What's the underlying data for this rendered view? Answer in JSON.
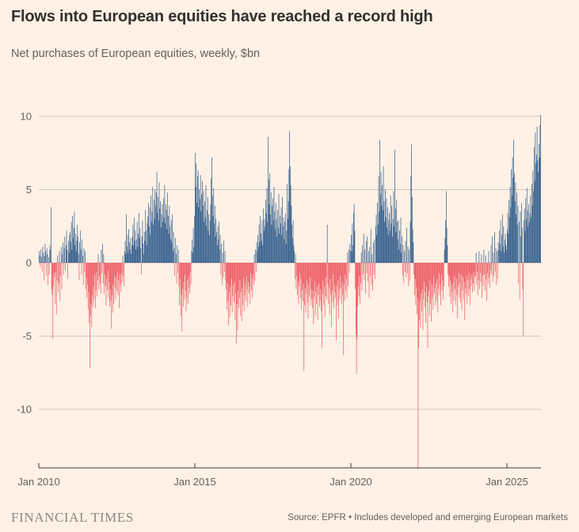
{
  "header": {
    "title": "Flows into European equities have reached a record high",
    "subtitle": "Net purchases of European equities, weekly, $bn"
  },
  "footer": {
    "brand": "FINANCIAL TIMES",
    "source": "Source: EPFR • Includes developed and emerging European markets"
  },
  "chart_data": {
    "type": "bar",
    "title": "Flows into European equities have reached a record high",
    "subtitle": "Net purchases of European equities, weekly, $bn",
    "unit": "$bn",
    "frequency": "weekly",
    "grid": true,
    "legend": "none",
    "colors": {
      "positive_bar": "#335f8d",
      "negative_bar": "#ed5b64",
      "background": "#fff1e5",
      "gridline": "#d2c5ba",
      "axis_line": "#66605c",
      "tick_text": "#66605c"
    },
    "y_axis": {
      "ticks": [
        10,
        5,
        0,
        -5,
        -10
      ],
      "min_shown": -14.1,
      "max_shown": 10.1
    },
    "x_axis": {
      "tick_labels": [
        "Jan 2010",
        "Jan 2015",
        "Jan 2020",
        "Jan 2025"
      ],
      "tick_weeks": [
        0,
        261,
        522,
        783
      ],
      "start": "Jan 2010"
    },
    "weekly_values": [
      0.8,
      0.5,
      -0.3,
      0.9,
      0.4,
      -0.6,
      1.1,
      0.7,
      -1.2,
      0.5,
      1.3,
      0.8,
      -0.9,
      1.0,
      0.6,
      -1.5,
      0.4,
      -0.8,
      1.2,
      0.9,
      3.8,
      -1.8,
      -2.2,
      -5.2,
      -1.6,
      -0.7,
      -1.0,
      -2.8,
      -0.6,
      -3.5,
      -1.2,
      0.5,
      -2.0,
      -1.4,
      0.8,
      -2.6,
      -0.9,
      1.1,
      -1.8,
      0.6,
      1.4,
      -0.8,
      1.0,
      1.8,
      -0.5,
      1.2,
      2.2,
      0.9,
      -1.1,
      1.5,
      0.7,
      1.9,
      2.1,
      1.4,
      2.8,
      0.9,
      3.2,
      1.7,
      2.4,
      3.5,
      1.2,
      2.0,
      0.8,
      1.5,
      2.6,
      1.8,
      0.6,
      -1.2,
      1.4,
      2.2,
      0.9,
      -0.8,
      1.6,
      0.5,
      -1.5,
      1.0,
      -0.6,
      0.8,
      -1.8,
      -1.0,
      -2.4,
      -1.5,
      -3.2,
      -2.0,
      -4.1,
      -7.2,
      -3.6,
      -2.8,
      -4.4,
      -2.2,
      -3.0,
      -1.6,
      -2.5,
      -0.8,
      -3.1,
      -1.9,
      -0.6,
      -2.3,
      -1.2,
      0.6,
      -1.8,
      -0.9,
      -1.4,
      -2.1,
      0.9,
      -0.7,
      1.3,
      -1.4,
      0.6,
      -2.1,
      -0.8,
      -1.6,
      -2.9,
      -1.1,
      -1.9,
      -0.5,
      -2.4,
      -1.3,
      -3.0,
      -1.8,
      -2.6,
      -4.5,
      -2.2,
      -3.4,
      -1.5,
      -2.8,
      -0.9,
      -1.7,
      -2.5,
      -1.0,
      -1.9,
      -0.6,
      -2.2,
      -1.2,
      -3.1,
      -0.8,
      -1.5,
      -2.0,
      -0.7,
      -1.3,
      0.5,
      -0.9,
      -1.6,
      0.8,
      1.5,
      0.6,
      3.3,
      1.1,
      1.9,
      0.7,
      2.3,
      1.4,
      0.9,
      1.7,
      0.6,
      1.2,
      1.8,
      2.6,
      1.2,
      3.1,
      1.5,
      2.2,
      0.9,
      1.6,
      2.8,
      1.1,
      2.0,
      3.4,
      1.7,
      2.4,
      1.0,
      -0.8,
      1.8,
      2.9,
      1.3,
      0.6,
      2.1,
      1.5,
      3.6,
      2.2,
      1.2,
      2.7,
      3.2,
      4.1,
      2.5,
      3.8,
      1.9,
      4.6,
      2.8,
      3.5,
      5.2,
      2.6,
      4.3,
      3.0,
      5.0,
      3.9,
      4.8,
      6.2,
      3.4,
      4.5,
      2.9,
      5.5,
      3.7,
      4.2,
      2.4,
      3.3,
      4.0,
      2.8,
      4.4,
      3.1,
      5.3,
      2.7,
      4.0,
      3.6,
      2.3,
      4.8,
      3.2,
      2.0,
      3.9,
      2.5,
      1.6,
      2.9,
      1.4,
      3.3,
      0.8,
      2.1,
      1.0,
      -0.9,
      1.7,
      0.6,
      -1.4,
      1.2,
      -0.7,
      0.9,
      -1.6,
      -2.9,
      -1.1,
      -3.6,
      -2.2,
      -4.7,
      -1.8,
      -3.0,
      -1.3,
      -2.5,
      -0.8,
      -1.9,
      -3.3,
      -2.4,
      -1.2,
      -2.8,
      -0.9,
      -1.7,
      -2.1,
      -0.6,
      -1.5,
      0.8,
      1.6,
      0.7,
      2.4,
      1.1,
      3.2,
      7.5,
      5.2,
      6.8,
      4.1,
      5.9,
      6.3,
      3.8,
      5.0,
      4.4,
      6.0,
      3.5,
      4.7,
      5.6,
      3.9,
      4.9,
      2.8,
      4.2,
      3.1,
      5.3,
      2.5,
      3.6,
      4.5,
      2.2,
      3.3,
      1.9,
      2.9,
      4.0,
      5.8,
      7.2,
      4.6,
      3.2,
      5.1,
      2.7,
      3.9,
      1.8,
      3.0,
      2.1,
      1.2,
      2.5,
      1.6,
      2.8,
      0.9,
      1.9,
      -0.8,
      1.3,
      -1.5,
      0.7,
      -1.0,
      1.5,
      -0.6,
      0.8,
      -1.2,
      -1.8,
      -3.2,
      -1.4,
      -2.6,
      -4.3,
      -2.0,
      -3.7,
      -1.6,
      -2.9,
      -1.1,
      -3.4,
      -2.3,
      -1.5,
      -2.7,
      -1.3,
      -3.9,
      -2.1,
      -5.5,
      -2.8,
      -4.6,
      -1.9,
      -3.1,
      -2.4,
      -1.2,
      -3.6,
      -2.0,
      -4.0,
      -1.7,
      -2.9,
      -1.0,
      -3.3,
      -2.2,
      -1.4,
      -2.6,
      -0.9,
      -1.8,
      -3.0,
      -1.3,
      -2.1,
      -1.6,
      -2.8,
      -0.7,
      -1.9,
      -1.1,
      -2.4,
      -0.8,
      -1.5,
      0.6,
      -1.2,
      0.9,
      -0.6,
      1.4,
      0.8,
      1.9,
      1.1,
      2.6,
      1.4,
      3.2,
      2.0,
      1.5,
      2.9,
      1.2,
      3.7,
      2.2,
      3.0,
      2.5,
      4.3,
      3.4,
      5.1,
      2.8,
      8.6,
      5.7,
      4.0,
      6.1,
      3.3,
      4.8,
      2.6,
      3.9,
      4.4,
      2.9,
      5.2,
      3.5,
      2.3,
      4.1,
      3.0,
      1.8,
      3.6,
      2.4,
      4.7,
      2.0,
      3.2,
      2.7,
      3.8,
      1.9,
      4.5,
      2.5,
      3.1,
      1.6,
      2.8,
      3.4,
      1.3,
      2.2,
      5.4,
      3.0,
      4.2,
      6.4,
      9.0,
      6.6,
      5.3,
      3.9,
      2.6,
      1.7,
      2.9,
      1.2,
      0.8,
      -1.1,
      0.6,
      -1.8,
      -0.9,
      -2.2,
      -1.3,
      -2.8,
      -1.6,
      -0.7,
      -2.4,
      -1.1,
      -3.2,
      -1.9,
      -2.6,
      -1.4,
      -7.4,
      -2.9,
      -1.7,
      -3.4,
      -2.1,
      -1.2,
      -2.7,
      -3.8,
      -1.5,
      -2.3,
      -1.0,
      -2.9,
      -1.8,
      -2.5,
      -3.1,
      -1.9,
      -4.2,
      -2.4,
      -1.3,
      -3.6,
      -2.0,
      -2.8,
      -1.6,
      -3.9,
      -2.2,
      -1.4,
      -3.0,
      -2.6,
      -1.8,
      -3.3,
      -5.8,
      -2.1,
      -1.2,
      -2.9,
      -1.6,
      -3.7,
      -2.3,
      -1.0,
      -2.5,
      2.6,
      -1.4,
      -2.8,
      -1.7,
      -3.5,
      -1.1,
      -2.2,
      -4.4,
      -1.9,
      -2.7,
      -0.8,
      -3.1,
      -1.5,
      -2.0,
      -2.4,
      -5.3,
      -1.6,
      -2.9,
      -1.2,
      -3.8,
      -1.8,
      -2.5,
      -0.9,
      -1.7,
      -2.8,
      -1.3,
      -2.2,
      -6.3,
      -1.5,
      -2.6,
      -0.8,
      -1.9,
      -1.1,
      -2.4,
      0.7,
      -1.6,
      0.9,
      -0.7,
      1.3,
      0.8,
      1.9,
      0.8,
      2.7,
      1.2,
      3.4,
      4.0,
      2.2,
      -1.8,
      -4.9,
      -7.6,
      -5.2,
      -3.0,
      -1.6,
      -2.3,
      -0.9,
      -2.8,
      -1.4,
      0.7,
      -1.9,
      1.2,
      -0.8,
      2.0,
      -1.2,
      0.9,
      -2.1,
      1.5,
      -0.7,
      1.8,
      -1.3,
      0.8,
      -2.4,
      1.1,
      -0.9,
      2.3,
      -1.5,
      0.6,
      -1.9,
      1.4,
      -0.8,
      1.6,
      -1.1,
      2.5,
      3.3,
      1.9,
      4.1,
      2.6,
      5.9,
      3.5,
      8.4,
      4.7,
      6.2,
      3.9,
      5.3,
      3.6,
      6.6,
      4.2,
      2.8,
      5.0,
      3.1,
      4.4,
      2.4,
      3.8,
      1.9,
      2.9,
      3.4,
      2.2,
      4.6,
      2.7,
      3.9,
      1.8,
      3.0,
      4.9,
      2.5,
      7.7,
      3.7,
      2.1,
      4.3,
      2.8,
      1.6,
      2.9,
      0.9,
      2.2,
      1.3,
      3.1,
      0.7,
      1.8,
      -0.9,
      1.2,
      -1.4,
      0.8,
      -0.6,
      1.5,
      -1.0,
      2.4,
      -0.7,
      1.1,
      -1.6,
      0.9,
      -1.2,
      2.8,
      5.9,
      8.1,
      4.5,
      2.3,
      1.4,
      -0.8,
      -2.2,
      -1.1,
      -2.9,
      -1.7,
      -3.5,
      -2.4,
      -14.1,
      -5.8,
      -3.9,
      -2.6,
      -4.4,
      -2.1,
      -3.3,
      -1.8,
      -4.6,
      -2.5,
      -1.3,
      -3.0,
      -2.0,
      -4.1,
      -1.6,
      -2.7,
      -5.8,
      -2.3,
      -1.9,
      -3.6,
      -1.2,
      -2.8,
      -4.0,
      -1.5,
      -2.4,
      -3.2,
      -0.9,
      -2.1,
      -1.7,
      -2.9,
      -1.4,
      -2.6,
      -1.1,
      -3.4,
      -1.8,
      -0.7,
      -2.2,
      -1.5,
      -2.9,
      -0.8,
      -1.9,
      -1.2,
      -2.5,
      -1.6,
      0.9,
      1.7,
      2.9,
      4.9,
      2.4,
      1.2,
      -0.8,
      -1.6,
      -0.9,
      -2.3,
      -1.2,
      -2.8,
      -1.5,
      -2.0,
      -3.4,
      -1.3,
      -2.6,
      -0.9,
      -1.8,
      -2.9,
      -1.1,
      -2.2,
      -3.8,
      -1.6,
      -0.7,
      -2.4,
      -1.4,
      -2.7,
      -0.8,
      -3.2,
      -1.9,
      -1.0,
      -2.5,
      -1.3,
      -3.9,
      -1.7,
      -2.1,
      -0.9,
      -2.8,
      -1.2,
      -2.3,
      -0.7,
      -1.8,
      -2.9,
      -1.1,
      -1.6,
      -0.8,
      -2.0,
      -1.4,
      -0.6,
      -1.9,
      -1.0,
      -0.9,
      0.7,
      -1.5,
      -0.6,
      -2.2,
      -1.2,
      0.8,
      -1.8,
      -0.7,
      -1.3,
      0.6,
      -2.4,
      -0.9,
      -1.6,
      0.9,
      -0.8,
      -1.9,
      0.5,
      -1.1,
      -2.6,
      -0.7,
      -1.4,
      0.8,
      -1.0,
      -1.7,
      -0.5,
      1.2,
      -0.8,
      1.8,
      -1.3,
      0.7,
      -0.9,
      2.1,
      -0.6,
      1.0,
      -1.5,
      0.8,
      -1.1,
      1.4,
      0.9,
      2.2,
      1.3,
      2.9,
      0.8,
      1.9,
      3.3,
      1.1,
      2.5,
      0.7,
      1.6,
      2.0,
      1.2,
      0.9,
      2.3,
      3.4,
      2.0,
      4.3,
      3.1,
      5.2,
      3.8,
      6.4,
      4.6,
      7.2,
      5.8,
      8.4,
      6.1,
      4.2,
      5.5,
      3.3,
      4.8,
      2.6,
      3.9,
      -1.4,
      2.8,
      -2.5,
      3.5,
      1.8,
      4.1,
      2.4,
      -1.8,
      -5.0,
      2.9,
      3.7,
      2.2,
      4.4,
      3.0,
      5.1,
      3.6,
      2.5,
      4.0,
      2.8,
      3.4,
      4.6,
      3.1,
      5.4,
      3.9,
      6.3,
      4.9,
      7.9,
      5.6,
      8.9,
      6.8,
      7.4,
      9.3,
      7.0,
      6.2,
      8.1,
      7.2,
      9.4,
      10.1
    ]
  }
}
